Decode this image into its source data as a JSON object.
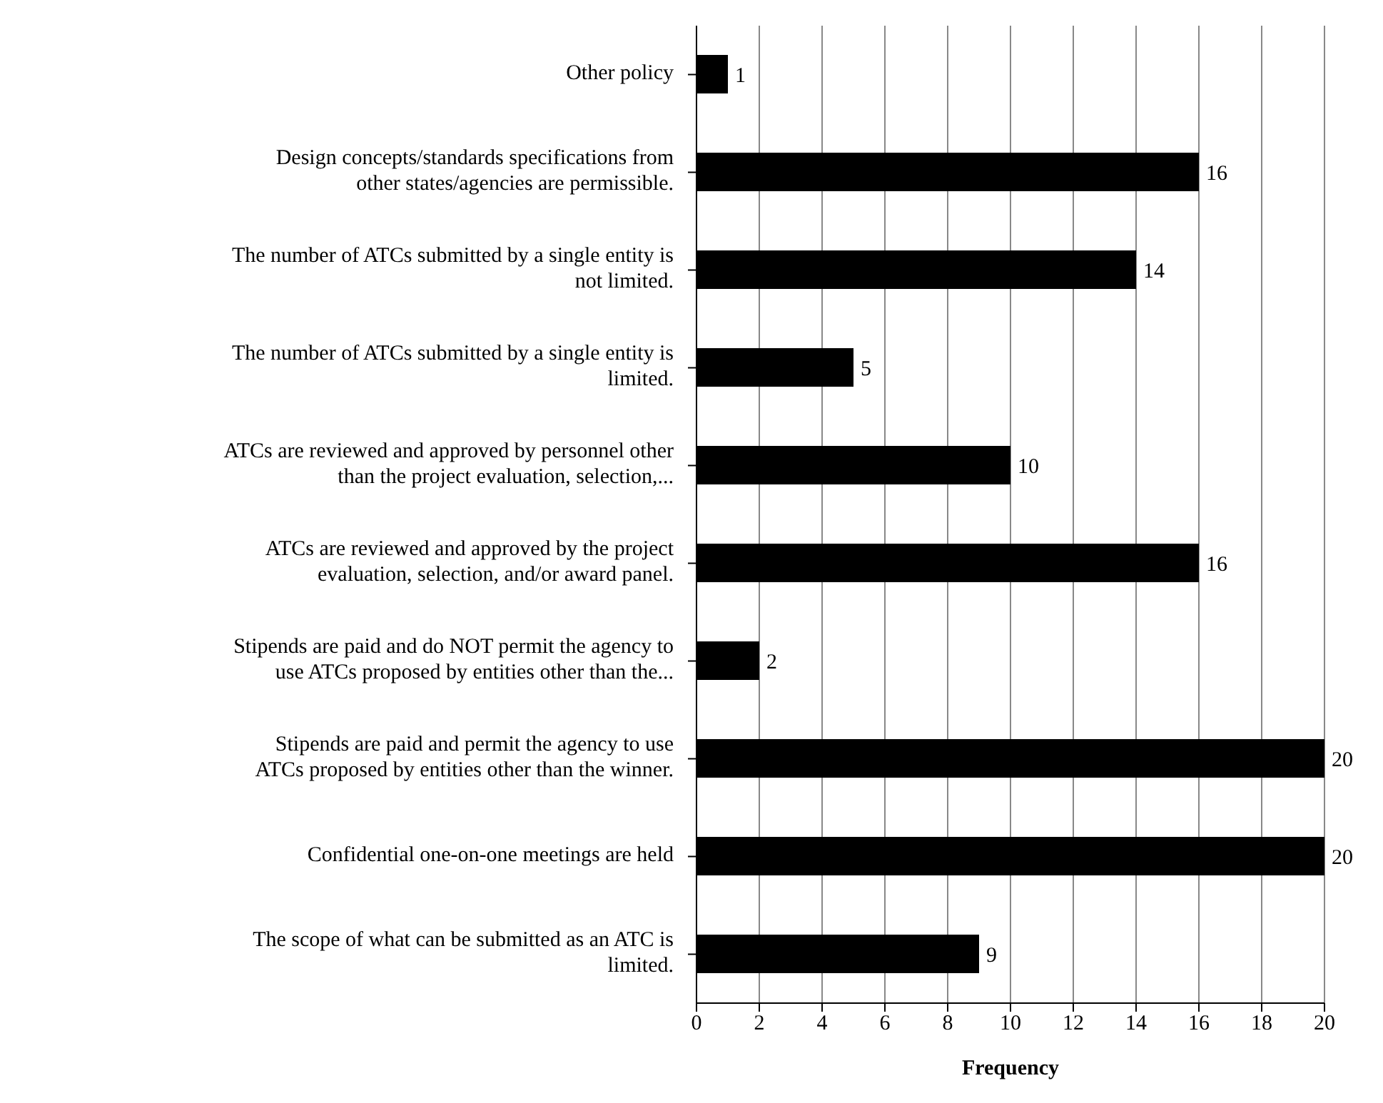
{
  "chart_data": {
    "type": "bar",
    "orientation": "horizontal",
    "xlabel": "Frequency",
    "categories": [
      "Other policy",
      "Design concepts/standards specifications from other states/agencies are permissible.",
      "The number of ATCs submitted by a single entity is not limited.",
      "The number of ATCs submitted by a single entity is limited.",
      "ATCs are reviewed and approved by personnel other than the project evaluation, selection,...",
      "ATCs are reviewed and approved by the project evaluation, selection, and/or award panel.",
      "Stipends are paid and do NOT permit the agency to use ATCs proposed by entities other than the...",
      "Stipends are paid and permit the agency to use ATCs proposed by entities other than the winner.",
      "Confidential one-on-one meetings are held",
      "The scope of what can be submitted as an ATC is limited."
    ],
    "values": [
      1,
      16,
      14,
      5,
      10,
      16,
      2,
      20,
      20,
      9
    ],
    "color": "#000000",
    "xlim": [
      0,
      20
    ],
    "xticks": [
      0,
      2,
      4,
      6,
      8,
      10,
      12,
      14,
      16,
      18,
      20
    ],
    "grid": "x",
    "data_labels": true,
    "legend": false
  }
}
